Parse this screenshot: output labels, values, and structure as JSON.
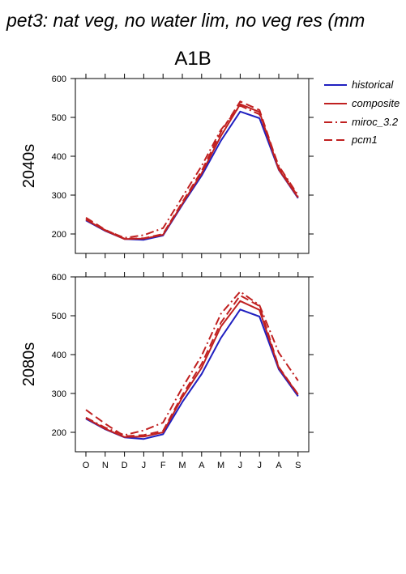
{
  "figure": {
    "title": "pet3: nat veg, no water lim, no veg res (mm",
    "panel_title": "A1B"
  },
  "colors": {
    "historical": "#2020c0",
    "future": "#c02020"
  },
  "legend": {
    "items": [
      {
        "label": "historical",
        "color": "#2020c0",
        "dash": "solid"
      },
      {
        "label": "composite",
        "color": "#c02020",
        "dash": "solid"
      },
      {
        "label": "miroc_3.2",
        "color": "#c02020",
        "dash": "dashdot"
      },
      {
        "label": "pcm1",
        "color": "#c02020",
        "dash": "dashed"
      }
    ]
  },
  "chart_data": [
    {
      "type": "line",
      "title": "",
      "row_label": "2040s",
      "categories": [
        "O",
        "N",
        "D",
        "J",
        "F",
        "M",
        "A",
        "M",
        "J",
        "J",
        "A",
        "S"
      ],
      "ylim": [
        150,
        600
      ],
      "yticks": [
        200,
        300,
        400,
        500,
        600
      ],
      "yticklabels": [
        "200",
        "300",
        "400",
        "500",
        "600"
      ],
      "show_xticklabels": false,
      "series": [
        {
          "name": "historical",
          "style": "historical",
          "values": [
            235,
            208,
            187,
            185,
            196,
            275,
            350,
            440,
            515,
            498,
            365,
            292
          ]
        },
        {
          "name": "composite",
          "style": "composite",
          "values": [
            237,
            209,
            187,
            188,
            198,
            278,
            356,
            452,
            534,
            514,
            366,
            294
          ]
        },
        {
          "name": "miroc_3.2",
          "style": "miroc",
          "values": [
            238,
            210,
            190,
            197,
            215,
            295,
            375,
            468,
            530,
            508,
            375,
            300
          ]
        },
        {
          "name": "pcm1",
          "style": "pcm1",
          "values": [
            242,
            211,
            188,
            189,
            200,
            282,
            362,
            462,
            541,
            519,
            372,
            296
          ]
        }
      ]
    },
    {
      "type": "line",
      "title": "",
      "row_label": "2080s",
      "categories": [
        "O",
        "N",
        "D",
        "J",
        "F",
        "M",
        "A",
        "M",
        "J",
        "J",
        "A",
        "S"
      ],
      "ylim": [
        150,
        600
      ],
      "yticks": [
        200,
        300,
        400,
        500,
        600
      ],
      "yticklabels": [
        "200",
        "300",
        "400",
        "500",
        "600"
      ],
      "show_xticklabels": true,
      "series": [
        {
          "name": "historical",
          "style": "historical",
          "values": [
            235,
            208,
            187,
            183,
            195,
            278,
            350,
            443,
            516,
            498,
            362,
            293
          ]
        },
        {
          "name": "composite",
          "style": "composite",
          "values": [
            237,
            209,
            188,
            189,
            200,
            290,
            366,
            472,
            538,
            515,
            366,
            297
          ]
        },
        {
          "name": "miroc_3.2",
          "style": "miroc",
          "values": [
            238,
            212,
            193,
            205,
            225,
            315,
            397,
            505,
            562,
            527,
            405,
            333
          ]
        },
        {
          "name": "pcm1",
          "style": "pcm1",
          "values": [
            258,
            222,
            190,
            193,
            204,
            296,
            376,
            482,
            552,
            525,
            368,
            298
          ]
        }
      ]
    }
  ]
}
